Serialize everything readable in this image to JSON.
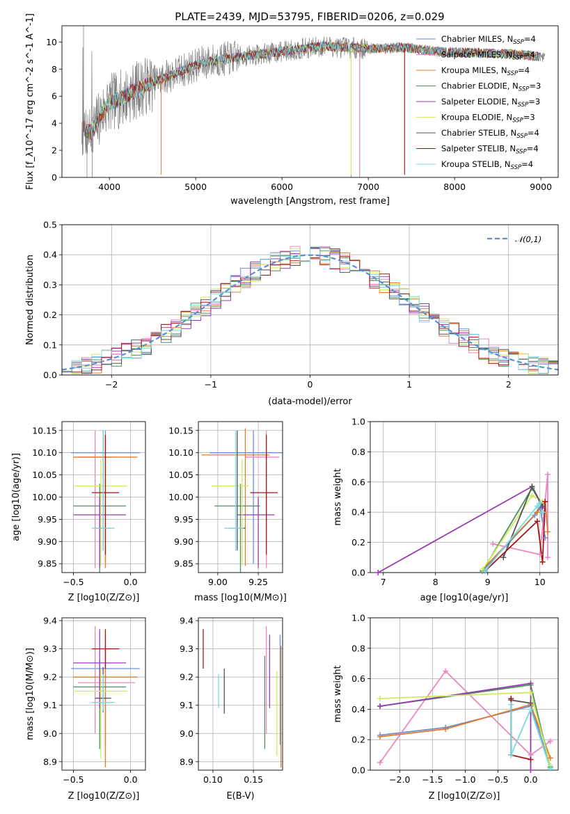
{
  "figure": {
    "title": "PLATE=2439, MJD=53795, FIBERID=0206, z=0.029",
    "series_colors": {
      "Chabrier MILES": "#6a8fd8",
      "Salpeter MILES": "#e986c0",
      "Kroupa MILES": "#e07b2c",
      "Chabrier ELODIE": "#4e8f5c",
      "Salpeter ELODIE": "#9a3ab2",
      "Kroupa ELODIE": "#cfeb5d",
      "Chabrier STELIB": "#555555",
      "Salpeter STELIB": "#a31616",
      "Kroupa STELIB": "#78dbe0"
    }
  },
  "chart_data": [
    {
      "id": "spectrum",
      "type": "line",
      "xlabel": "wavelength [Angstrom, rest frame]",
      "ylabel": "Flux [f_λ10^-17 erg cm^-2 s^-1 A^-1]",
      "xlim": [
        3450,
        9200
      ],
      "ylim": [
        0,
        11.2
      ],
      "xticks": [
        4000,
        5000,
        6000,
        7000,
        8000,
        9000
      ],
      "yticks": [
        0,
        2,
        4,
        6,
        8,
        10
      ],
      "observed_color": "#808080",
      "continuum": [
        [
          3700,
          3.6
        ],
        [
          3800,
          3.3
        ],
        [
          3900,
          4.6
        ],
        [
          4000,
          5.5
        ],
        [
          4100,
          5.7
        ],
        [
          4300,
          6.4
        ],
        [
          4500,
          7.0
        ],
        [
          4800,
          7.8
        ],
        [
          5100,
          8.5
        ],
        [
          5500,
          8.9
        ],
        [
          6000,
          9.3
        ],
        [
          6500,
          9.7
        ],
        [
          7000,
          9.5
        ],
        [
          7400,
          9.6
        ],
        [
          7800,
          9.3
        ],
        [
          8200,
          9.2
        ],
        [
          8700,
          9.1
        ],
        [
          9000,
          8.9
        ]
      ],
      "model_cut_dips": [
        [
          4600,
          "Kroupa MILES"
        ],
        [
          7420,
          "Kroupa MILES"
        ],
        [
          7420,
          "Salpeter STELIB"
        ],
        [
          6800,
          "Kroupa ELODIE"
        ],
        [
          6900,
          "Salpeter MILES"
        ]
      ],
      "legend": [
        {
          "name": "Chabrier MILES",
          "label": "Chabrier MILES, N",
          "sub": "SSP",
          "suffix": "=4"
        },
        {
          "name": "Salpeter MILES",
          "label": "Salpeter MILES, N",
          "sub": "SSP",
          "suffix": "=4"
        },
        {
          "name": "Kroupa MILES",
          "label": "Kroupa MILES, N",
          "sub": "SSP",
          "suffix": "=4"
        },
        {
          "name": "Chabrier ELODIE",
          "label": "Chabrier ELODIE, N",
          "sub": "SSP",
          "suffix": "=3"
        },
        {
          "name": "Salpeter ELODIE",
          "label": "Salpeter ELODIE, N",
          "sub": "SSP",
          "suffix": "=3"
        },
        {
          "name": "Kroupa ELODIE",
          "label": "Kroupa ELODIE, N",
          "sub": "SSP",
          "suffix": "=3"
        },
        {
          "name": "Chabrier STELIB",
          "label": "Chabrier STELIB, N",
          "sub": "SSP",
          "suffix": "=4"
        },
        {
          "name": "Salpeter STELIB",
          "label": "Salpeter STELIB, N",
          "sub": "SSP",
          "suffix": "=4"
        },
        {
          "name": "Kroupa STELIB",
          "label": "Kroupa STELIB, N",
          "sub": "SSP",
          "suffix": "=4"
        }
      ],
      "legend_placement": "upper-right"
    },
    {
      "id": "residual-hist",
      "type": "line",
      "xlabel": "(data-model)/error",
      "ylabel": "Normed distribution",
      "xlim": [
        -2.5,
        2.5
      ],
      "ylim": [
        0,
        0.5
      ],
      "xticks": [
        -2,
        -1,
        0,
        1,
        2
      ],
      "yticks": [
        0.0,
        0.1,
        0.2,
        0.3,
        0.4,
        0.5
      ],
      "grid": true,
      "bin_width": 0.1,
      "reference_curve": {
        "label": "𝒩(0,1)",
        "color": "#5b8fd4",
        "style": "dashed",
        "mean": 0,
        "sigma": 1
      },
      "legend_placement": "upper-right"
    },
    {
      "id": "age-vs-Z",
      "type": "scatter",
      "xlabel": "Z [log10(Z/Z⊙)]",
      "ylabel": "age  [log10(age/yr)]",
      "xlim": [
        -0.6,
        0.13
      ],
      "ylim": [
        9.83,
        10.17
      ],
      "xticks": [
        -0.5,
        0.0
      ],
      "yticks": [
        9.85,
        9.9,
        9.95,
        10.0,
        10.05,
        10.1,
        10.15
      ],
      "grid": true,
      "points": [
        {
          "series": "Chabrier MILES",
          "x": -0.22,
          "xerr": [
            0.3,
            0.3
          ],
          "y": 10.1,
          "yerr": [
            0.25,
            0.05
          ]
        },
        {
          "series": "Salpeter MILES",
          "x": -0.31,
          "xerr": [
            0.15,
            0.15
          ],
          "y": 10.09,
          "yerr": [
            0.25,
            0.06
          ]
        },
        {
          "series": "Kroupa MILES",
          "x": -0.22,
          "xerr": [
            0.28,
            0.28
          ],
          "y": 10.09,
          "yerr": [
            0.25,
            0.05
          ]
        },
        {
          "series": "Chabrier ELODIE",
          "x": -0.27,
          "xerr": [
            0.23,
            0.23
          ],
          "y": 9.98,
          "yerr": [
            0.15,
            0.05
          ]
        },
        {
          "series": "Salpeter ELODIE",
          "x": -0.27,
          "xerr": [
            0.23,
            0.23
          ],
          "y": 9.96,
          "yerr": [
            0.12,
            0.04
          ]
        },
        {
          "series": "Kroupa ELODIE",
          "x": -0.26,
          "xerr": [
            0.23,
            0.23
          ],
          "y": 10.025,
          "yerr": [
            0.18,
            0.06
          ]
        },
        {
          "series": "Chabrier STELIB",
          "x": -0.24,
          "xerr": [
            0.07,
            0.07
          ],
          "y": 9.93,
          "yerr": [
            0.05,
            0.22
          ]
        },
        {
          "series": "Salpeter STELIB",
          "x": -0.22,
          "xerr": [
            0.12,
            0.12
          ],
          "y": 10.01,
          "yerr": [
            0.14,
            0.13
          ]
        },
        {
          "series": "Kroupa STELIB",
          "x": -0.24,
          "xerr": [
            0.1,
            0.1
          ],
          "y": 9.93,
          "yerr": [
            0.05,
            0.22
          ]
        }
      ]
    },
    {
      "id": "age-vs-mass",
      "type": "scatter",
      "xlabel": "mass [log10(M/M⊙)]",
      "ylabel": "",
      "xlim": [
        8.88,
        9.4
      ],
      "ylim": [
        9.83,
        10.17
      ],
      "xticks": [
        9.0,
        9.25
      ],
      "yticks": [
        9.85,
        9.9,
        9.95,
        10.0,
        10.05,
        10.1,
        10.15
      ],
      "grid": true,
      "points": [
        {
          "series": "Chabrier MILES",
          "x": 9.22,
          "xerr": [
            0.27,
            0.18
          ],
          "y": 10.1,
          "yerr": [
            0.25,
            0.05
          ]
        },
        {
          "series": "Salpeter MILES",
          "x": 9.3,
          "xerr": [
            0.13,
            0.08
          ],
          "y": 10.09,
          "yerr": [
            0.25,
            0.06
          ]
        },
        {
          "series": "Kroupa MILES",
          "x": 9.17,
          "xerr": [
            0.27,
            0.15
          ],
          "y": 10.095,
          "yerr": [
            0.25,
            0.06
          ]
        },
        {
          "series": "Chabrier ELODIE",
          "x": 9.14,
          "xerr": [
            0.16,
            0.12
          ],
          "y": 9.98,
          "yerr": [
            0.15,
            0.05
          ]
        },
        {
          "series": "Salpeter ELODIE",
          "x": 9.25,
          "xerr": [
            0.13,
            0.1
          ],
          "y": 9.96,
          "yerr": [
            0.12,
            0.04
          ]
        },
        {
          "series": "Kroupa ELODIE",
          "x": 9.15,
          "xerr": [
            0.19,
            0.04
          ],
          "y": 10.025,
          "yerr": [
            0.18,
            0.06
          ]
        },
        {
          "series": "Chabrier STELIB",
          "x": 9.12,
          "xerr": [
            0.05,
            0.05
          ],
          "y": 9.93,
          "yerr": [
            0.05,
            0.22
          ]
        },
        {
          "series": "Salpeter STELIB",
          "x": 9.3,
          "xerr": [
            0.1,
            0.07
          ],
          "y": 10.01,
          "yerr": [
            0.14,
            0.13
          ]
        },
        {
          "series": "Kroupa STELIB",
          "x": 9.11,
          "xerr": [
            0.07,
            0.05
          ],
          "y": 9.93,
          "yerr": [
            0.05,
            0.22
          ]
        }
      ]
    },
    {
      "id": "weight-vs-age",
      "type": "line",
      "xlabel": "age  [log10(age/yr)]",
      "ylabel": "mass weight",
      "xlim": [
        6.75,
        10.35
      ],
      "ylim": [
        0,
        1.0
      ],
      "xticks": [
        7,
        8,
        9,
        10
      ],
      "yticks": [
        0.0,
        0.2,
        0.4,
        0.6,
        0.8,
        1.0
      ],
      "grid": true,
      "series": [
        {
          "name": "Chabrier MILES",
          "x": [
            8.9,
            9.9,
            10.0,
            10.1
          ],
          "y": [
            0.01,
            0.38,
            0.44,
            0.23
          ]
        },
        {
          "name": "Salpeter MILES",
          "x": [
            9.1,
            10.0,
            10.15,
            10.15
          ],
          "y": [
            0.19,
            0.12,
            0.65,
            0.1
          ]
        },
        {
          "name": "Kroupa MILES",
          "x": [
            8.9,
            9.95,
            10.1,
            10.15
          ],
          "y": [
            0.02,
            0.4,
            0.47,
            0.27
          ]
        },
        {
          "name": "Chabrier ELODIE",
          "x": [
            8.9,
            9.85,
            10.05
          ],
          "y": [
            0.01,
            0.56,
            0.44
          ]
        },
        {
          "name": "Salpeter ELODIE",
          "x": [
            6.9,
            9.85,
            10.05
          ],
          "y": [
            0.0,
            0.57,
            0.43
          ]
        },
        {
          "name": "Kroupa ELODIE",
          "x": [
            8.9,
            9.85,
            10.05
          ],
          "y": [
            0.02,
            0.51,
            0.47
          ]
        },
        {
          "name": "Chabrier STELIB",
          "x": [
            9.3,
            9.85,
            10.05
          ],
          "y": [
            0.1,
            0.57,
            0.44
          ]
        },
        {
          "name": "Salpeter STELIB",
          "x": [
            8.95,
            9.95,
            10.05,
            10.1
          ],
          "y": [
            0.01,
            0.34,
            0.07,
            0.47
          ]
        },
        {
          "name": "Kroupa STELIB",
          "x": [
            8.95,
            9.95,
            10.0,
            10.05
          ],
          "y": [
            0.01,
            0.44,
            0.46,
            0.4
          ]
        }
      ]
    },
    {
      "id": "mass-vs-Z",
      "type": "scatter",
      "xlabel": "Z [log10(Z/Z⊙)]",
      "ylabel": "mass [log10(M/M⊙)]",
      "xlim": [
        -0.6,
        0.13
      ],
      "ylim": [
        8.87,
        9.41
      ],
      "xticks": [
        -0.5,
        0.0
      ],
      "yticks": [
        8.9,
        9.0,
        9.1,
        9.2,
        9.3,
        9.4
      ],
      "grid": true,
      "points": [
        {
          "series": "Chabrier MILES",
          "x": -0.22,
          "xerr": [
            0.3,
            0.3
          ],
          "y": 9.23,
          "yerr": [
            0.27,
            0.12
          ]
        },
        {
          "series": "Salpeter MILES",
          "x": -0.31,
          "xerr": [
            0.15,
            0.35
          ],
          "y": 9.18,
          "yerr": [
            0.18,
            0.2
          ]
        },
        {
          "series": "Kroupa MILES",
          "x": -0.22,
          "xerr": [
            0.28,
            0.28
          ],
          "y": 9.2,
          "yerr": [
            0.32,
            0.12
          ]
        },
        {
          "series": "Chabrier ELODIE",
          "x": -0.27,
          "xerr": [
            0.23,
            0.23
          ],
          "y": 9.165,
          "yerr": [
            0.22,
            0.1
          ]
        },
        {
          "series": "Salpeter ELODIE",
          "x": -0.27,
          "xerr": [
            0.23,
            0.23
          ],
          "y": 9.25,
          "yerr": [
            0.16,
            0.12
          ]
        },
        {
          "series": "Kroupa ELODIE",
          "x": -0.26,
          "xerr": [
            0.23,
            0.23
          ],
          "y": 9.15,
          "yerr": [
            0.24,
            0.08
          ]
        },
        {
          "series": "Chabrier STELIB",
          "x": -0.24,
          "xerr": [
            0.07,
            0.07
          ],
          "y": 9.125,
          "yerr": [
            0.05,
            0.11
          ]
        },
        {
          "series": "Salpeter STELIB",
          "x": -0.22,
          "xerr": [
            0.12,
            0.12
          ],
          "y": 9.3,
          "yerr": [
            0.07,
            0.07
          ]
        },
        {
          "series": "Kroupa STELIB",
          "x": -0.24,
          "xerr": [
            0.1,
            0.1
          ],
          "y": 9.11,
          "yerr": [
            0.03,
            0.1
          ]
        }
      ]
    },
    {
      "id": "mass-vs-ebv",
      "type": "scatter",
      "xlabel": "E(B-V)",
      "ylabel": "",
      "xlim": [
        0.082,
        0.186
      ],
      "ylim": [
        8.87,
        9.41
      ],
      "xticks": [
        0.1,
        0.15
      ],
      "yticks": [
        8.9,
        9.0,
        9.1,
        9.2,
        9.3,
        9.4
      ],
      "grid": true,
      "points": [
        {
          "series": "Chabrier MILES",
          "x": 0.183,
          "y": 9.23,
          "yerr": [
            0.27,
            0.12
          ]
        },
        {
          "series": "Salpeter MILES",
          "x": 0.166,
          "y": 9.18,
          "yerr": [
            0.18,
            0.2
          ]
        },
        {
          "series": "Kroupa MILES",
          "x": 0.184,
          "y": 9.2,
          "yerr": [
            0.32,
            0.11
          ]
        },
        {
          "series": "Chabrier ELODIE",
          "x": 0.164,
          "y": 9.165,
          "yerr": [
            0.22,
            0.11
          ]
        },
        {
          "series": "Salpeter ELODIE",
          "x": 0.17,
          "y": 9.25,
          "yerr": [
            0.16,
            0.1
          ]
        },
        {
          "series": "Kroupa ELODIE",
          "x": 0.179,
          "y": 9.15,
          "yerr": [
            0.23,
            0.07
          ]
        },
        {
          "series": "Chabrier STELIB",
          "x": 0.114,
          "y": 9.15,
          "yerr": [
            0.08,
            0.08
          ]
        },
        {
          "series": "Salpeter STELIB",
          "x": 0.088,
          "y": 9.3,
          "yerr": [
            0.07,
            0.07
          ]
        },
        {
          "series": "Kroupa STELIB",
          "x": 0.107,
          "y": 9.15,
          "yerr": [
            0.06,
            0.06
          ]
        }
      ]
    },
    {
      "id": "weight-vs-Z",
      "type": "line",
      "xlabel": "Z [log10(Z/Z⊙)]",
      "ylabel": "mass weight",
      "xlim": [
        -2.45,
        0.42
      ],
      "ylim": [
        0,
        1.0
      ],
      "xticks": [
        -2.0,
        -1.5,
        -1.0,
        -0.5,
        0.0
      ],
      "yticks": [
        0.0,
        0.2,
        0.4,
        0.6,
        0.8,
        1.0
      ],
      "grid": true,
      "series": [
        {
          "name": "Chabrier MILES",
          "x": [
            -2.3,
            -1.3,
            0.0,
            0.3
          ],
          "y": [
            0.23,
            0.28,
            0.42,
            0.03
          ]
        },
        {
          "name": "Salpeter MILES",
          "x": [
            -2.3,
            -1.3,
            0.0,
            0.3
          ],
          "y": [
            0.05,
            0.65,
            0.1,
            0.19
          ]
        },
        {
          "name": "Kroupa MILES",
          "x": [
            -2.3,
            -1.3,
            0.0,
            0.3
          ],
          "y": [
            0.22,
            0.27,
            0.43,
            0.08
          ]
        },
        {
          "name": "Chabrier ELODIE",
          "x": [
            -2.3,
            0.0,
            0.3
          ],
          "y": [
            0.42,
            0.56,
            0.02
          ]
        },
        {
          "name": "Salpeter ELODIE",
          "x": [
            -2.3,
            0.0,
            0.0
          ],
          "y": [
            0.42,
            0.57,
            0.0
          ]
        },
        {
          "name": "Kroupa ELODIE",
          "x": [
            -2.3,
            0.0,
            0.3
          ],
          "y": [
            0.47,
            0.51,
            0.03
          ]
        },
        {
          "name": "Chabrier STELIB",
          "x": [
            -0.3,
            -0.3,
            0.0
          ],
          "y": [
            0.1,
            0.46,
            0.44
          ]
        },
        {
          "name": "Salpeter STELIB",
          "x": [
            -0.3,
            -0.3,
            0.0
          ],
          "y": [
            0.47,
            0.1,
            0.07
          ]
        },
        {
          "name": "Kroupa STELIB",
          "x": [
            -0.3,
            -0.3,
            0.0,
            0.3
          ],
          "y": [
            0.43,
            0.1,
            0.4,
            0.01
          ]
        }
      ]
    }
  ]
}
